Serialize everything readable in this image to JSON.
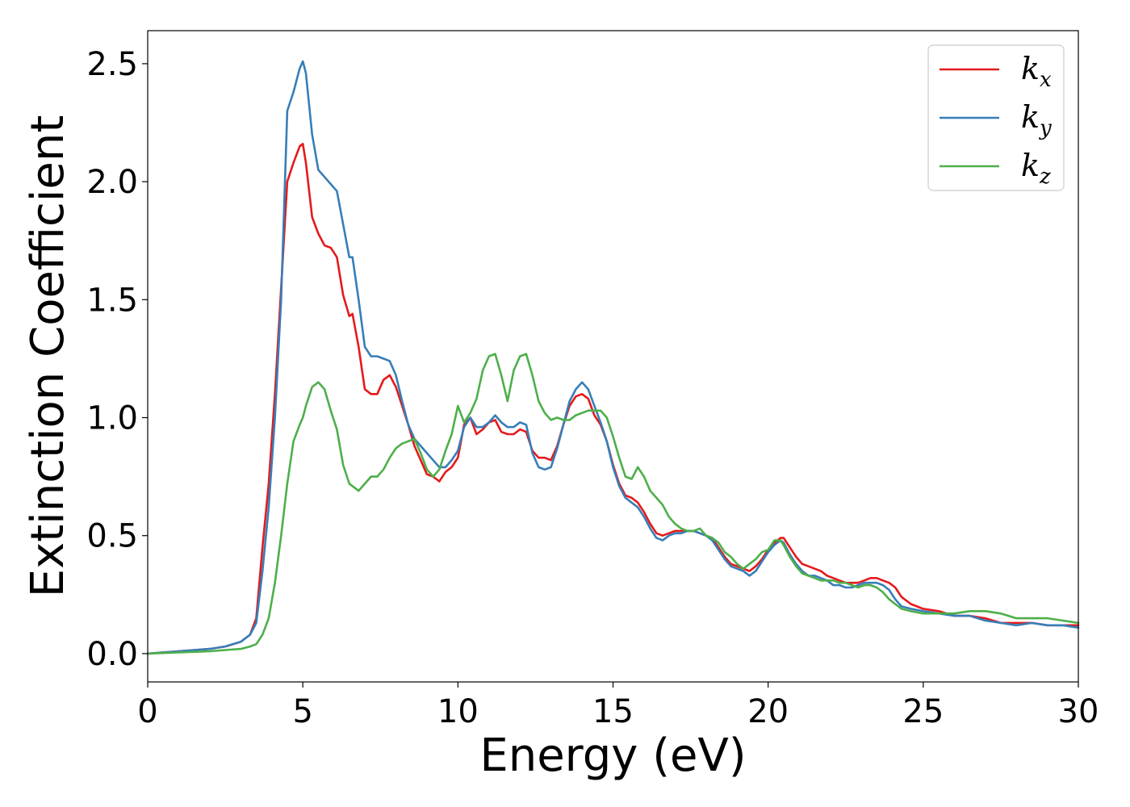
{
  "chart_data": {
    "type": "line",
    "title": "",
    "xlabel": "Energy (eV)",
    "ylabel": "Extinction Coefficient",
    "xlim": [
      0,
      30
    ],
    "ylim": [
      -0.12,
      2.64
    ],
    "x_ticks": [
      "0",
      "5",
      "10",
      "15",
      "20",
      "25",
      "30"
    ],
    "y_ticks": [
      "0.0",
      "0.5",
      "1.0",
      "1.5",
      "2.0",
      "2.5"
    ],
    "x_tick_values": [
      0,
      5,
      10,
      15,
      20,
      25,
      30
    ],
    "y_tick_values": [
      0,
      0.5,
      1.0,
      1.5,
      2.0,
      2.5
    ],
    "grid": false,
    "legend_position": "top-right",
    "series": [
      {
        "name": "k_x",
        "label_base": "k",
        "label_sub": "x",
        "color": "#e41a1c",
        "x": [
          0,
          1,
          2,
          2.5,
          3,
          3.3,
          3.5,
          3.7,
          3.9,
          4.1,
          4.3,
          4.5,
          4.7,
          4.9,
          5.0,
          5.1,
          5.3,
          5.5,
          5.7,
          5.9,
          6.1,
          6.3,
          6.5,
          6.6,
          6.8,
          7.0,
          7.2,
          7.4,
          7.6,
          7.8,
          8.0,
          8.2,
          8.4,
          8.6,
          8.8,
          9.0,
          9.2,
          9.4,
          9.6,
          9.8,
          10.0,
          10.2,
          10.4,
          10.6,
          10.8,
          11.0,
          11.2,
          11.4,
          11.6,
          11.8,
          12.0,
          12.2,
          12.4,
          12.6,
          12.8,
          13.0,
          13.2,
          13.4,
          13.6,
          13.8,
          14.0,
          14.2,
          14.4,
          14.6,
          14.8,
          15.0,
          15.2,
          15.4,
          15.6,
          15.8,
          16.0,
          16.2,
          16.4,
          16.6,
          16.8,
          17.0,
          17.2,
          17.4,
          17.6,
          17.8,
          18.0,
          18.2,
          18.4,
          18.6,
          18.8,
          19.0,
          19.2,
          19.4,
          19.6,
          19.8,
          20.0,
          20.2,
          20.4,
          20.5,
          20.7,
          20.9,
          21.1,
          21.3,
          21.5,
          21.7,
          21.9,
          22.1,
          22.3,
          22.5,
          22.7,
          22.9,
          23.1,
          23.3,
          23.5,
          23.7,
          23.9,
          24.1,
          24.3,
          24.6,
          25.0,
          25.5,
          26.0,
          26.5,
          27.0,
          27.5,
          28.0,
          28.5,
          29.0,
          29.5,
          30.0
        ],
        "y": [
          0.0,
          0.01,
          0.02,
          0.03,
          0.05,
          0.08,
          0.15,
          0.45,
          0.72,
          1.1,
          1.55,
          2.0,
          2.08,
          2.15,
          2.16,
          2.08,
          1.85,
          1.78,
          1.73,
          1.72,
          1.68,
          1.52,
          1.43,
          1.44,
          1.3,
          1.12,
          1.1,
          1.1,
          1.16,
          1.18,
          1.13,
          1.05,
          0.97,
          0.88,
          0.82,
          0.76,
          0.75,
          0.73,
          0.77,
          0.79,
          0.83,
          0.97,
          1.0,
          0.93,
          0.95,
          0.98,
          0.99,
          0.94,
          0.93,
          0.93,
          0.95,
          0.94,
          0.86,
          0.83,
          0.83,
          0.82,
          0.88,
          0.97,
          1.05,
          1.09,
          1.1,
          1.08,
          1.01,
          0.97,
          0.9,
          0.8,
          0.72,
          0.67,
          0.66,
          0.64,
          0.6,
          0.55,
          0.51,
          0.5,
          0.51,
          0.52,
          0.52,
          0.52,
          0.52,
          0.51,
          0.5,
          0.49,
          0.45,
          0.41,
          0.38,
          0.37,
          0.36,
          0.35,
          0.37,
          0.4,
          0.44,
          0.47,
          0.49,
          0.49,
          0.45,
          0.41,
          0.38,
          0.37,
          0.36,
          0.35,
          0.33,
          0.32,
          0.31,
          0.3,
          0.3,
          0.3,
          0.31,
          0.32,
          0.32,
          0.31,
          0.3,
          0.28,
          0.24,
          0.21,
          0.19,
          0.18,
          0.16,
          0.16,
          0.15,
          0.13,
          0.13,
          0.13,
          0.12,
          0.12,
          0.12
        ]
      },
      {
        "name": "k_y",
        "label_base": "k",
        "label_sub": "y",
        "color": "#377eb8",
        "x": [
          0,
          1,
          2,
          2.5,
          3,
          3.3,
          3.5,
          3.7,
          3.9,
          4.1,
          4.3,
          4.5,
          4.7,
          4.9,
          5.0,
          5.1,
          5.3,
          5.5,
          5.7,
          5.9,
          6.1,
          6.3,
          6.5,
          6.6,
          6.8,
          7.0,
          7.2,
          7.4,
          7.6,
          7.8,
          8.0,
          8.2,
          8.4,
          8.6,
          8.8,
          9.0,
          9.2,
          9.4,
          9.6,
          9.8,
          10.0,
          10.2,
          10.4,
          10.6,
          10.8,
          11.0,
          11.2,
          11.4,
          11.6,
          11.8,
          12.0,
          12.2,
          12.4,
          12.6,
          12.8,
          13.0,
          13.2,
          13.4,
          13.6,
          13.8,
          14.0,
          14.2,
          14.4,
          14.6,
          14.8,
          15.0,
          15.2,
          15.4,
          15.6,
          15.8,
          16.0,
          16.2,
          16.4,
          16.6,
          16.8,
          17.0,
          17.2,
          17.4,
          17.6,
          17.8,
          18.0,
          18.2,
          18.4,
          18.6,
          18.8,
          19.0,
          19.2,
          19.4,
          19.6,
          19.8,
          20.0,
          20.2,
          20.4,
          20.5,
          20.7,
          20.9,
          21.1,
          21.3,
          21.5,
          21.7,
          21.9,
          22.1,
          22.3,
          22.5,
          22.7,
          22.9,
          23.1,
          23.3,
          23.5,
          23.7,
          23.9,
          24.1,
          24.3,
          24.6,
          25.0,
          25.5,
          26.0,
          26.5,
          27.0,
          27.5,
          28.0,
          28.5,
          29.0,
          29.5,
          30.0
        ],
        "y": [
          0.0,
          0.01,
          0.02,
          0.03,
          0.05,
          0.08,
          0.13,
          0.35,
          0.62,
          1.0,
          1.5,
          2.3,
          2.38,
          2.48,
          2.51,
          2.46,
          2.2,
          2.05,
          2.02,
          1.99,
          1.96,
          1.82,
          1.68,
          1.68,
          1.5,
          1.3,
          1.26,
          1.26,
          1.25,
          1.24,
          1.18,
          1.07,
          0.97,
          0.91,
          0.88,
          0.85,
          0.82,
          0.79,
          0.79,
          0.82,
          0.86,
          0.96,
          1.0,
          0.96,
          0.96,
          0.98,
          1.01,
          0.98,
          0.96,
          0.96,
          0.98,
          0.97,
          0.85,
          0.79,
          0.78,
          0.79,
          0.87,
          0.97,
          1.07,
          1.12,
          1.15,
          1.12,
          1.05,
          0.98,
          0.9,
          0.79,
          0.71,
          0.66,
          0.64,
          0.62,
          0.58,
          0.53,
          0.49,
          0.48,
          0.5,
          0.51,
          0.51,
          0.52,
          0.52,
          0.51,
          0.5,
          0.48,
          0.44,
          0.4,
          0.37,
          0.36,
          0.35,
          0.33,
          0.35,
          0.39,
          0.43,
          0.46,
          0.48,
          0.47,
          0.42,
          0.38,
          0.35,
          0.33,
          0.33,
          0.32,
          0.31,
          0.29,
          0.29,
          0.28,
          0.28,
          0.29,
          0.3,
          0.3,
          0.3,
          0.29,
          0.27,
          0.23,
          0.2,
          0.19,
          0.18,
          0.17,
          0.16,
          0.16,
          0.14,
          0.13,
          0.12,
          0.13,
          0.12,
          0.12,
          0.11
        ]
      },
      {
        "name": "k_z",
        "label_base": "k",
        "label_sub": "z",
        "color": "#4daf4a",
        "x": [
          0,
          1,
          2,
          2.5,
          3,
          3.3,
          3.5,
          3.7,
          3.9,
          4.1,
          4.3,
          4.5,
          4.7,
          4.9,
          5.0,
          5.1,
          5.3,
          5.5,
          5.7,
          5.9,
          6.1,
          6.3,
          6.5,
          6.6,
          6.8,
          7.0,
          7.2,
          7.4,
          7.6,
          7.8,
          8.0,
          8.2,
          8.4,
          8.6,
          8.8,
          9.0,
          9.2,
          9.4,
          9.6,
          9.8,
          10.0,
          10.2,
          10.4,
          10.6,
          10.8,
          11.0,
          11.2,
          11.4,
          11.6,
          11.8,
          12.0,
          12.2,
          12.4,
          12.6,
          12.8,
          13.0,
          13.2,
          13.4,
          13.6,
          13.8,
          14.0,
          14.2,
          14.4,
          14.6,
          14.8,
          15.0,
          15.2,
          15.4,
          15.6,
          15.8,
          16.0,
          16.2,
          16.4,
          16.6,
          16.8,
          17.0,
          17.2,
          17.4,
          17.6,
          17.8,
          18.0,
          18.2,
          18.4,
          18.6,
          18.8,
          19.0,
          19.2,
          19.4,
          19.6,
          19.8,
          20.0,
          20.2,
          20.4,
          20.5,
          20.7,
          20.9,
          21.1,
          21.3,
          21.5,
          21.7,
          21.9,
          22.1,
          22.3,
          22.5,
          22.7,
          22.9,
          23.1,
          23.3,
          23.5,
          23.7,
          23.9,
          24.1,
          24.3,
          24.6,
          25.0,
          25.5,
          26.0,
          26.5,
          27.0,
          27.5,
          28.0,
          28.5,
          29.0,
          29.5,
          30.0
        ],
        "y": [
          0.0,
          0.005,
          0.01,
          0.015,
          0.02,
          0.03,
          0.04,
          0.08,
          0.15,
          0.3,
          0.5,
          0.72,
          0.9,
          0.97,
          1.0,
          1.05,
          1.13,
          1.15,
          1.12,
          1.03,
          0.95,
          0.8,
          0.72,
          0.71,
          0.69,
          0.72,
          0.75,
          0.75,
          0.78,
          0.83,
          0.87,
          0.89,
          0.9,
          0.91,
          0.85,
          0.78,
          0.75,
          0.78,
          0.86,
          0.93,
          1.05,
          0.98,
          1.02,
          1.08,
          1.2,
          1.26,
          1.27,
          1.18,
          1.07,
          1.2,
          1.26,
          1.27,
          1.18,
          1.07,
          1.02,
          0.99,
          1.0,
          0.99,
          0.99,
          1.01,
          1.02,
          1.03,
          1.03,
          1.03,
          1.0,
          0.92,
          0.83,
          0.75,
          0.74,
          0.79,
          0.75,
          0.69,
          0.66,
          0.63,
          0.58,
          0.55,
          0.53,
          0.52,
          0.52,
          0.53,
          0.5,
          0.49,
          0.47,
          0.43,
          0.41,
          0.38,
          0.36,
          0.38,
          0.4,
          0.43,
          0.44,
          0.48,
          0.48,
          0.46,
          0.41,
          0.37,
          0.34,
          0.33,
          0.32,
          0.31,
          0.31,
          0.31,
          0.3,
          0.3,
          0.29,
          0.28,
          0.29,
          0.29,
          0.28,
          0.26,
          0.23,
          0.21,
          0.19,
          0.18,
          0.17,
          0.17,
          0.17,
          0.18,
          0.18,
          0.17,
          0.15,
          0.15,
          0.15,
          0.14,
          0.13
        ]
      }
    ]
  }
}
